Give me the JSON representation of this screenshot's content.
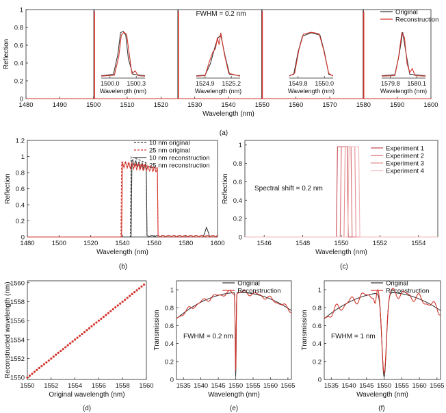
{
  "colors": {
    "original": "#3a3a3a",
    "reconstruction": "#d2342b",
    "axis": "#222222"
  },
  "chart_data": [
    {
      "id": "a",
      "type": "line",
      "caption": "(a)",
      "xlabel": "Wavelength (nm)",
      "ylabel": "Reflection",
      "xlim": [
        1480,
        1600
      ],
      "ylim": [
        0,
        1.0
      ],
      "xticks": [
        1480,
        1490,
        1500,
        1510,
        1520,
        1530,
        1540,
        1550,
        1560,
        1570,
        1580,
        1590,
        1600
      ],
      "yticks": [
        0,
        0.2,
        0.4,
        0.6,
        0.8,
        1
      ],
      "annotation": "FWHM = 0.2 nm",
      "legend_position": "top-right",
      "series": [
        {
          "name": "Original",
          "color": "original",
          "peaks": [
            1500.15,
            1525.05,
            1549.9,
            1579.95
          ],
          "height": 1.0
        },
        {
          "name": "Reconstruction",
          "color": "reconstruction",
          "peaks": [
            1500.15,
            1525.05,
            1549.9,
            1579.95
          ],
          "height": 0.98
        }
      ],
      "insets": [
        {
          "xticks": [
            "1500.0",
            "1500.3"
          ],
          "xlabel": "Wavelength (nm)"
        },
        {
          "xticks": [
            "1524.9",
            "1525.2"
          ],
          "xlabel": "Wavelength (nm)"
        },
        {
          "xticks": [
            "1549.8",
            "1550.0"
          ],
          "xlabel": "Wavelength (nm)"
        },
        {
          "xticks": [
            "1579.8",
            "1580.1"
          ],
          "xlabel": "Wavelength (nm)"
        }
      ]
    },
    {
      "id": "b",
      "type": "line",
      "caption": "(b)",
      "xlabel": "Wavelength (nm)",
      "ylabel": "Reflection",
      "xlim": [
        1480,
        1600
      ],
      "ylim": [
        0,
        1.2
      ],
      "xticks": [
        1480,
        1500,
        1520,
        1540,
        1560,
        1580,
        1600
      ],
      "yticks": [
        0,
        0.2,
        0.4,
        0.6,
        0.8,
        1,
        1.2
      ],
      "legend_position": "top-right",
      "series": [
        {
          "name": "10 nm original",
          "style": "dashed",
          "color": "original",
          "band": [
            1545.5,
            1555
          ],
          "level": 1.0
        },
        {
          "name": "25 nm original",
          "style": "dashed",
          "color": "reconstruction",
          "band": [
            1539.5,
            1562
          ],
          "level": 0.93
        },
        {
          "name": "10 nm reconstruction",
          "style": "solid",
          "color": "original",
          "band": [
            1546,
            1555
          ],
          "level": 0.93
        },
        {
          "name": "25 nm reconstruction",
          "style": "solid",
          "color": "reconstruction",
          "band": [
            1540,
            1562
          ],
          "level": 0.9
        }
      ]
    },
    {
      "id": "c",
      "type": "line",
      "caption": "(c)",
      "xlabel": "Wavelength (nm)",
      "ylabel": "Reflection",
      "xlim": [
        1545,
        1555
      ],
      "ylim": [
        0,
        1.05
      ],
      "xticks": [
        1546,
        1548,
        1550,
        1552,
        1554
      ],
      "yticks": [
        0,
        0.2,
        0.4,
        0.6,
        0.8,
        1
      ],
      "annotation": "Spectral shift = 0.2 nm",
      "legend_position": "top-right",
      "series": [
        {
          "name": "Experiment 1",
          "color": "#c74a52",
          "band": [
            1549.8,
            1550.3
          ]
        },
        {
          "name": "Experiment 2",
          "color": "#d76a6f",
          "band": [
            1550.0,
            1550.5
          ]
        },
        {
          "name": "Experiment 3",
          "color": "#e58d90",
          "band": [
            1550.2,
            1550.7
          ]
        },
        {
          "name": "Experiment 4",
          "color": "#f0b5b7",
          "band": [
            1550.4,
            1550.9
          ]
        }
      ]
    },
    {
      "id": "d",
      "type": "scatter",
      "caption": "(d)",
      "xlabel": "Original wavelength (nm)",
      "ylabel": "Reconstructed wavelength (nm)",
      "xlim": [
        1550,
        1560
      ],
      "ylim": [
        1549.8,
        1560.2
      ],
      "xticks": [
        1550,
        1552,
        1554,
        1556,
        1558,
        1560
      ],
      "yticks": [
        1550,
        1552,
        1554,
        1556,
        1558,
        1560
      ],
      "series": [
        {
          "name": "",
          "x_start": 1550.0,
          "x_end": 1559.8,
          "x_step": 0.2,
          "slope": 1.0
        }
      ]
    },
    {
      "id": "e",
      "type": "line",
      "caption": "(e)",
      "xlabel": "Wavelength (nm)",
      "ylabel": "Transmission",
      "xlim": [
        1533,
        1566
      ],
      "ylim": [
        0,
        1.1
      ],
      "xticks": [
        1535,
        1540,
        1545,
        1550,
        1555,
        1560,
        1565
      ],
      "yticks": [
        0,
        0.2,
        0.4,
        0.6,
        0.8,
        1
      ],
      "annotation": "FWHM = 0.2 nm",
      "legend_position": "top-center",
      "notch": {
        "center": 1550,
        "depth_original": 0.03,
        "depth_reconstruction": 0.1,
        "width": 0.2
      },
      "series": [
        {
          "name": "Original",
          "color": "original"
        },
        {
          "name": "Reconstruction",
          "color": "reconstruction"
        }
      ]
    },
    {
      "id": "f",
      "type": "line",
      "caption": "(f)",
      "xlabel": "Wavelength (nm)",
      "ylabel": "Transmission",
      "xlim": [
        1533,
        1566
      ],
      "ylim": [
        0,
        1.1
      ],
      "xticks": [
        1535,
        1540,
        1545,
        1550,
        1555,
        1560,
        1565
      ],
      "yticks": [
        0,
        0.2,
        0.4,
        0.6,
        0.8,
        1
      ],
      "annotation": "FWHM = 1 nm",
      "legend_position": "top-center",
      "notch": {
        "center": 1550,
        "depth_original": 0.03,
        "depth_reconstruction": 0.07,
        "width": 1.0
      },
      "series": [
        {
          "name": "Original",
          "color": "original"
        },
        {
          "name": "Reconstruction",
          "color": "reconstruction"
        }
      ]
    }
  ]
}
